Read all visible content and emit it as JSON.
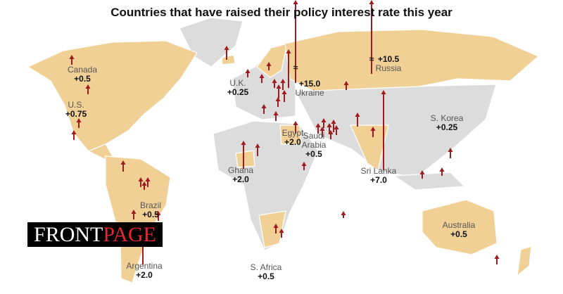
{
  "title": "Countries that have raised their policy interest rate this year",
  "colors": {
    "raised": "#f1d096",
    "other": "#dcdcdc",
    "arrow": "#9e1b1f",
    "logo_accent": "#e8262f"
  },
  "labels": [
    {
      "name": "Canada",
      "value": "+0.5"
    },
    {
      "name": "U.S.",
      "value": "+0.75"
    },
    {
      "name": "Brazil",
      "value": "+0.5"
    },
    {
      "name": "Argentina",
      "value": "+2.0"
    },
    {
      "name": "Ghana",
      "value": "+2.0"
    },
    {
      "name": "U.K.",
      "value": "+0.25"
    },
    {
      "name": "Egypt",
      "value": "+2.0"
    },
    {
      "name": "Saudi Arabia",
      "value": "+0.5"
    },
    {
      "name": "Ukraine",
      "value": "+15.0"
    },
    {
      "name": "Russia",
      "value": "+10.5"
    },
    {
      "name": "Sri Lanka",
      "value": "+7.0"
    },
    {
      "name": "S. Korea",
      "value": "+0.25"
    },
    {
      "name": "Australia",
      "value": "+0.5"
    },
    {
      "name": "S. Africa",
      "value": "+0.5"
    }
  ],
  "logo": {
    "part1": "FRONT",
    "part2": "PAGE"
  }
}
